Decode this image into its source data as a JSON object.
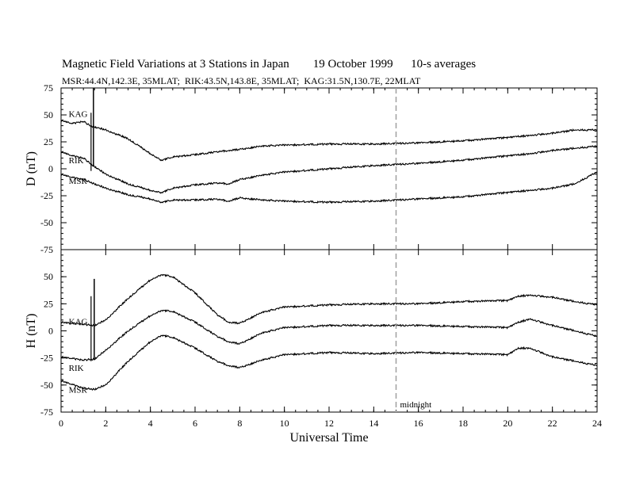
{
  "title": "Magnetic Field Variations at 3 Stations in Japan        19 October 1999      10-s averages",
  "subtitle": "MSR:44.4N,142.3E, 35MLAT;  RIK:43.5N,143.8E, 35MLAT;  KAG:31.5N,130.7E, 22MLAT",
  "chart_data": [
    {
      "type": "line",
      "panel": "top",
      "ylabel": "D (nT)",
      "ylim": [
        -75,
        75
      ],
      "yticks": [
        75,
        50,
        25,
        0,
        -25,
        -50,
        -75
      ],
      "xlim": [
        0,
        24
      ],
      "grid": false,
      "series": [
        {
          "name": "KAG",
          "x": [
            0,
            0.5,
            1,
            1.3,
            2,
            3,
            4,
            4.5,
            5,
            6,
            7,
            8,
            9,
            10,
            12,
            14,
            16,
            18,
            20,
            21,
            22,
            23,
            24
          ],
          "values": [
            45,
            42,
            44,
            40,
            36,
            28,
            14,
            8,
            11,
            13,
            16,
            18,
            21,
            22,
            23,
            23,
            24,
            26,
            29,
            31,
            33,
            36,
            36
          ]
        },
        {
          "name": "RIK",
          "x": [
            0,
            0.5,
            1,
            1.3,
            2,
            3,
            4,
            4.5,
            5,
            6,
            7,
            7.5,
            8,
            9,
            10,
            12,
            14,
            16,
            18,
            20,
            21,
            22,
            23,
            24
          ],
          "values": [
            16,
            12,
            10,
            5,
            -5,
            -14,
            -20,
            -22,
            -18,
            -15,
            -13,
            -14,
            -10,
            -6,
            -3,
            0,
            3,
            5,
            8,
            12,
            14,
            17,
            19,
            21
          ]
        },
        {
          "name": "MSR",
          "x": [
            0,
            0.5,
            1,
            1.5,
            2,
            3,
            4,
            4.5,
            5,
            6,
            7,
            7.5,
            8,
            9,
            10,
            12,
            14,
            16,
            18,
            20,
            21,
            22,
            23,
            24
          ],
          "values": [
            -5,
            -8,
            -10,
            -14,
            -18,
            -24,
            -28,
            -31,
            -29,
            -29,
            -28,
            -30,
            -27,
            -29,
            -30,
            -31,
            -30,
            -28,
            -26,
            -22,
            -20,
            -18,
            -14,
            -3
          ]
        }
      ],
      "labels": [
        "KAG",
        "RIK",
        "MSR"
      ]
    },
    {
      "type": "line",
      "panel": "bottom",
      "ylabel": "H (nT)",
      "xlabel": "Universal Time",
      "ylim": [
        -75,
        75
      ],
      "yticks": [
        50,
        25,
        0,
        -25,
        -50,
        -75
      ],
      "xlim": [
        0,
        24
      ],
      "xticks": [
        0,
        2,
        4,
        6,
        8,
        10,
        12,
        14,
        16,
        18,
        20,
        22,
        24
      ],
      "grid": false,
      "series": [
        {
          "name": "KAG",
          "x": [
            0,
            1,
            1.5,
            2,
            3,
            4,
            4.5,
            5,
            6,
            7,
            7.5,
            8,
            9,
            10,
            12,
            14,
            16,
            18,
            20,
            20.5,
            21,
            22,
            23,
            24
          ],
          "values": [
            8,
            6,
            5,
            10,
            30,
            47,
            52,
            50,
            35,
            15,
            8,
            7,
            17,
            22,
            24,
            25,
            25,
            27,
            28,
            32,
            33,
            31,
            27,
            24
          ]
        },
        {
          "name": "RIK",
          "x": [
            0,
            1,
            1.5,
            2,
            3,
            4,
            4.5,
            5,
            6,
            7,
            7.5,
            8,
            9,
            10,
            12,
            14,
            16,
            18,
            20,
            20.5,
            21,
            22,
            23,
            24
          ],
          "values": [
            -24,
            -27,
            -26,
            -18,
            0,
            14,
            19,
            18,
            8,
            -5,
            -10,
            -12,
            -2,
            3,
            5,
            5,
            5,
            4,
            3,
            8,
            11,
            5,
            0,
            -5
          ]
        },
        {
          "name": "MSR",
          "x": [
            0,
            1,
            1.5,
            2,
            3,
            4,
            4.5,
            5,
            6,
            7,
            7.5,
            8,
            9,
            10,
            12,
            14,
            16,
            18,
            20,
            20.5,
            21,
            22,
            23,
            24
          ],
          "values": [
            -46,
            -53,
            -54,
            -50,
            -28,
            -10,
            -4,
            -6,
            -16,
            -28,
            -32,
            -34,
            -27,
            -22,
            -20,
            -21,
            -20,
            -21,
            -22,
            -16,
            -16,
            -24,
            -28,
            -32
          ]
        }
      ],
      "labels": [
        "KAG",
        "RIK",
        "MSR"
      ]
    }
  ],
  "annotation": {
    "text": "midnight",
    "x": 15
  }
}
